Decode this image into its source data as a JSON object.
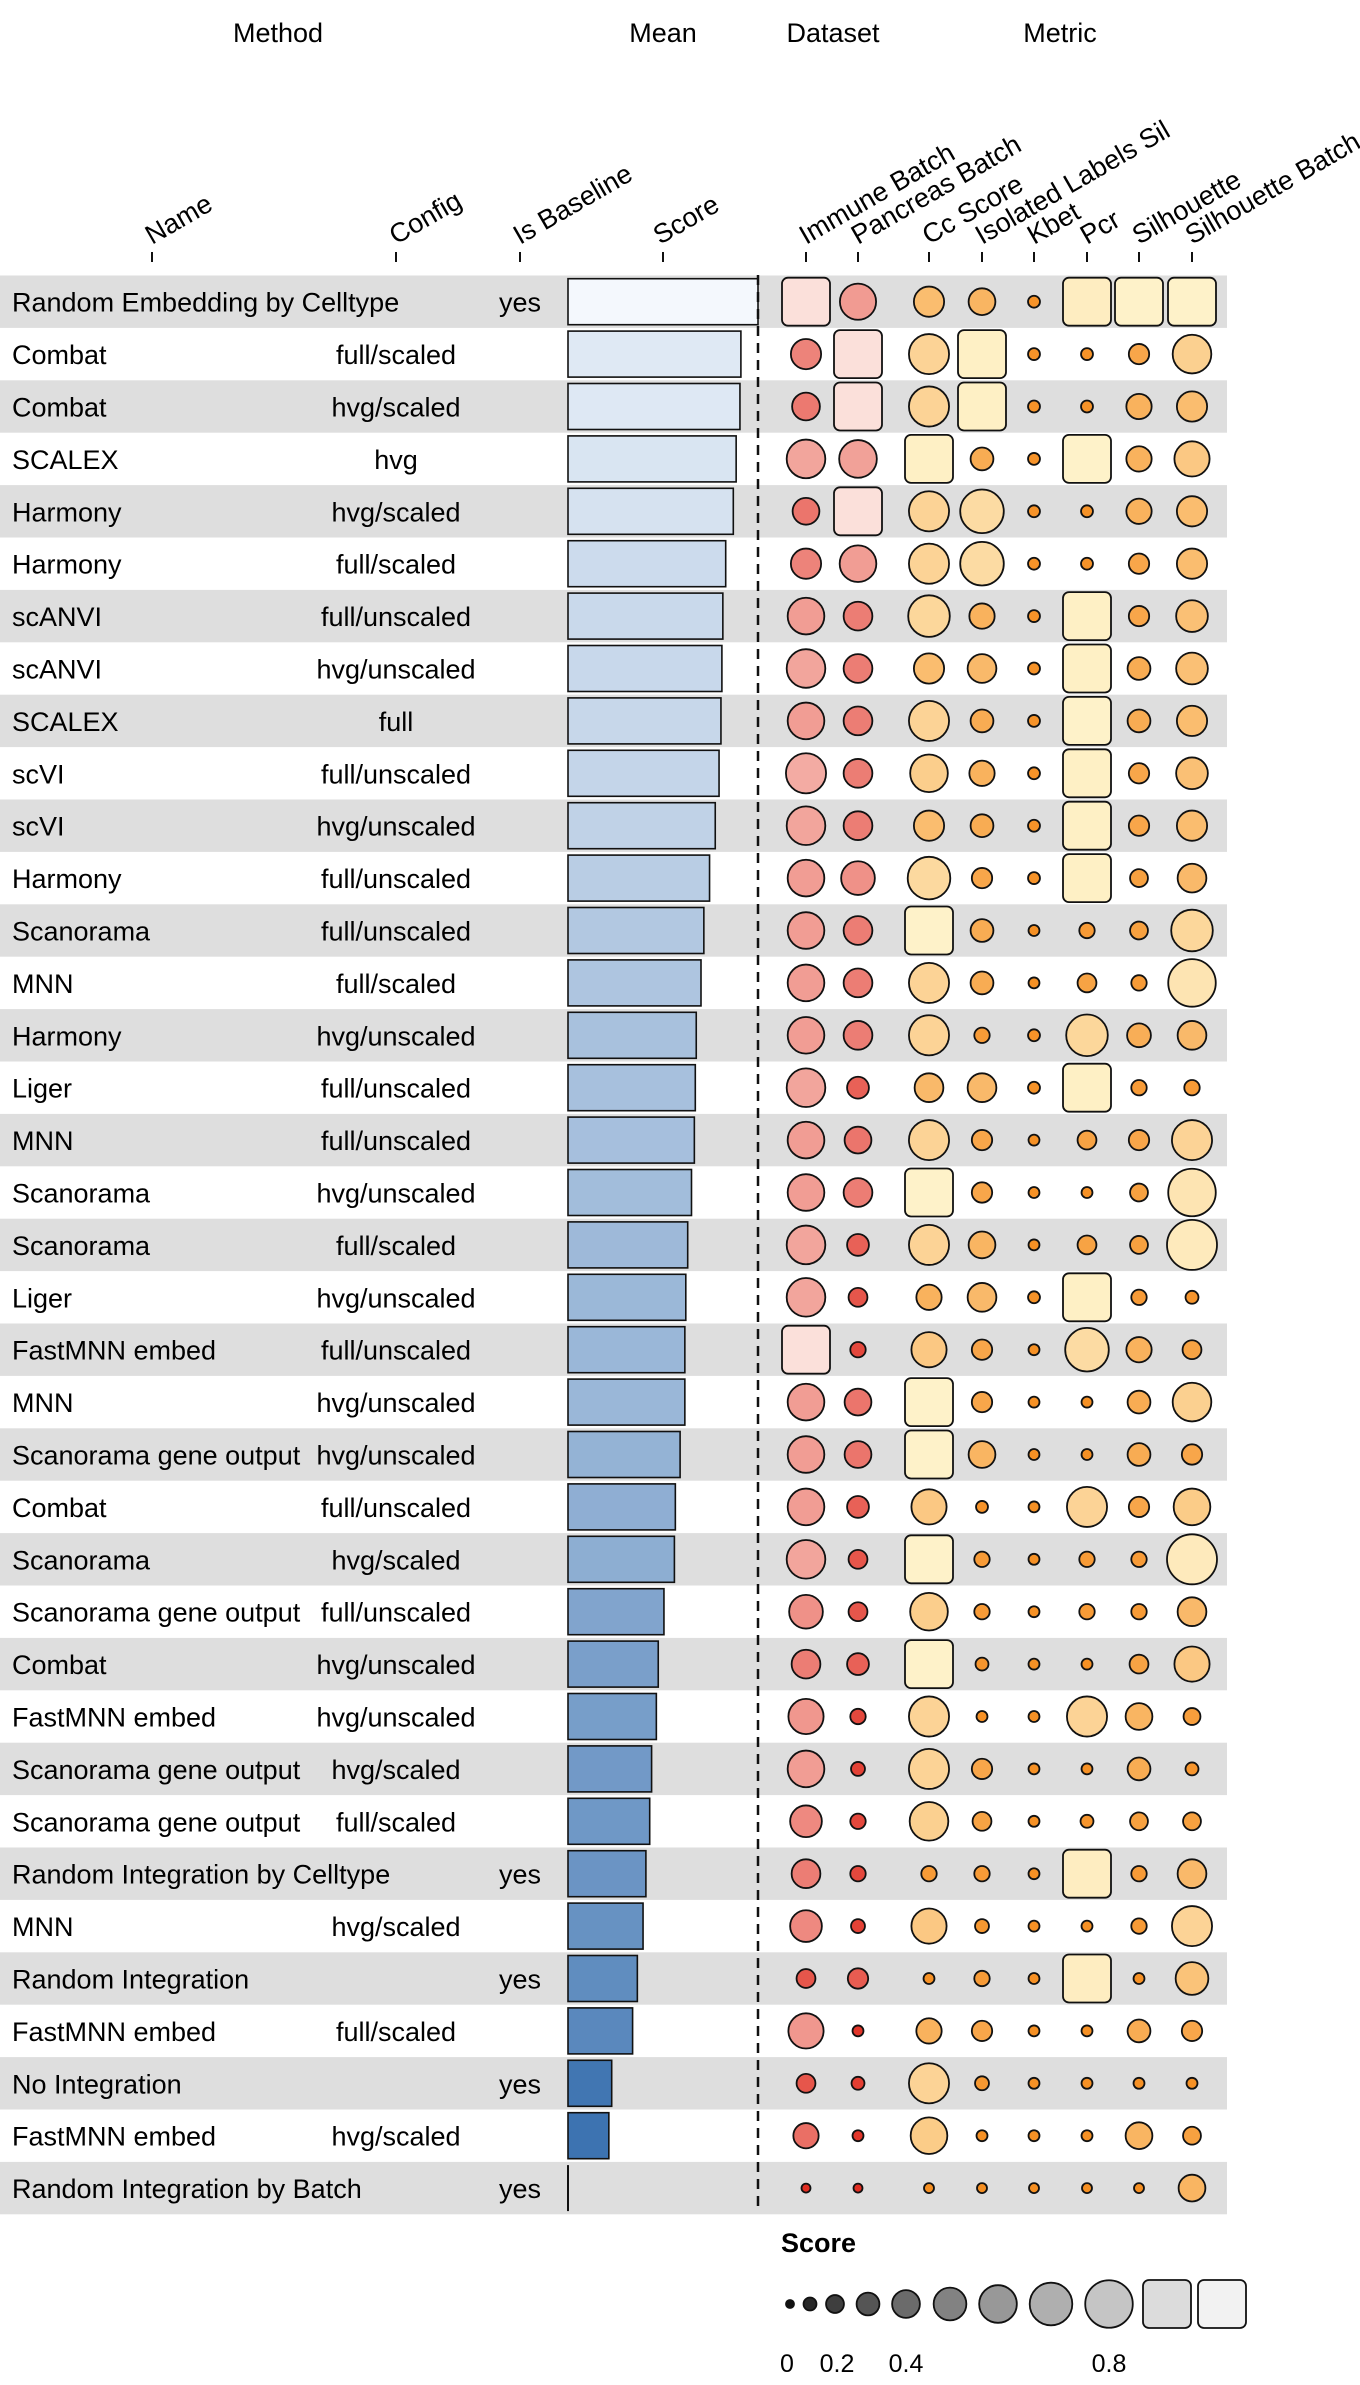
{
  "groups": {
    "method": "Method",
    "mean": "Mean",
    "dataset": "Dataset",
    "metric": "Metric"
  },
  "columns": {
    "name": "Name",
    "config": "Config",
    "baseline": "Is Baseline",
    "score": "Score"
  },
  "chart_data": {
    "type": "table",
    "metrics": [
      "Immune Batch",
      "Pancreas Batch",
      "Cc Score",
      "Isolated Labels Sil",
      "Kbet",
      "Pcr",
      "Silhouette",
      "Silhouette Batch"
    ],
    "metric_groups": [
      "Dataset",
      "Dataset",
      "Metric",
      "Metric",
      "Metric",
      "Metric",
      "Metric",
      "Metric"
    ],
    "rows": [
      {
        "name": "Random Embedding by Celltype",
        "config": "",
        "baseline": "yes",
        "score": 1.0,
        "values": [
          0.92,
          0.57,
          0.45,
          0.38,
          0.08,
          0.88,
          0.92,
          0.92
        ]
      },
      {
        "name": "Combat",
        "config": "full/scaled",
        "baseline": "",
        "score": 0.91,
        "values": [
          0.45,
          0.92,
          0.65,
          0.9,
          0.08,
          0.08,
          0.25,
          0.62
        ]
      },
      {
        "name": "Combat",
        "config": "hvg/scaled",
        "baseline": "",
        "score": 0.905,
        "values": [
          0.4,
          0.92,
          0.65,
          0.9,
          0.08,
          0.08,
          0.35,
          0.45
        ]
      },
      {
        "name": "SCALEX",
        "config": "hvg",
        "baseline": "",
        "score": 0.885,
        "values": [
          0.62,
          0.6,
          0.9,
          0.3,
          0.08,
          0.92,
          0.35,
          0.55
        ]
      },
      {
        "name": "Harmony",
        "config": "hvg/scaled",
        "baseline": "",
        "score": 0.87,
        "values": [
          0.38,
          0.92,
          0.65,
          0.72,
          0.08,
          0.08,
          0.35,
          0.45
        ]
      },
      {
        "name": "Harmony",
        "config": "full/scaled",
        "baseline": "",
        "score": 0.83,
        "values": [
          0.45,
          0.58,
          0.65,
          0.72,
          0.08,
          0.08,
          0.25,
          0.45
        ]
      },
      {
        "name": "scANVI",
        "config": "full/unscaled",
        "baseline": "",
        "score": 0.815,
        "values": [
          0.58,
          0.42,
          0.68,
          0.35,
          0.08,
          0.9,
          0.25,
          0.48
        ]
      },
      {
        "name": "scANVI",
        "config": "hvg/unscaled",
        "baseline": "",
        "score": 0.81,
        "values": [
          0.62,
          0.42,
          0.45,
          0.42,
          0.08,
          0.9,
          0.3,
          0.48
        ]
      },
      {
        "name": "SCALEX",
        "config": "full",
        "baseline": "",
        "score": 0.805,
        "values": [
          0.58,
          0.42,
          0.65,
          0.3,
          0.08,
          0.92,
          0.3,
          0.45
        ]
      },
      {
        "name": "scVI",
        "config": "full/unscaled",
        "baseline": "",
        "score": 0.795,
        "values": [
          0.65,
          0.42,
          0.6,
          0.35,
          0.08,
          0.9,
          0.25,
          0.48
        ]
      },
      {
        "name": "scVI",
        "config": "hvg/unscaled",
        "baseline": "",
        "score": 0.775,
        "values": [
          0.62,
          0.42,
          0.45,
          0.3,
          0.08,
          0.9,
          0.25,
          0.45
        ]
      },
      {
        "name": "Harmony",
        "config": "full/unscaled",
        "baseline": "",
        "score": 0.745,
        "values": [
          0.58,
          0.52,
          0.7,
          0.25,
          0.08,
          0.9,
          0.2,
          0.42
        ]
      },
      {
        "name": "Scanorama",
        "config": "full/unscaled",
        "baseline": "",
        "score": 0.715,
        "values": [
          0.58,
          0.42,
          0.92,
          0.3,
          0.06,
          0.15,
          0.2,
          0.68
        ]
      },
      {
        "name": "MNN",
        "config": "full/scaled",
        "baseline": "",
        "score": 0.7,
        "values": [
          0.58,
          0.42,
          0.65,
          0.3,
          0.06,
          0.22,
          0.15,
          0.8
        ]
      },
      {
        "name": "Harmony",
        "config": "hvg/unscaled",
        "baseline": "",
        "score": 0.675,
        "values": [
          0.58,
          0.42,
          0.65,
          0.15,
          0.08,
          0.68,
          0.32,
          0.42
        ]
      },
      {
        "name": "Liger",
        "config": "full/unscaled",
        "baseline": "",
        "score": 0.67,
        "values": [
          0.62,
          0.28,
          0.42,
          0.42,
          0.08,
          0.9,
          0.15,
          0.15
        ]
      },
      {
        "name": "MNN",
        "config": "full/unscaled",
        "baseline": "",
        "score": 0.665,
        "values": [
          0.58,
          0.38,
          0.65,
          0.25,
          0.06,
          0.22,
          0.25,
          0.65
        ]
      },
      {
        "name": "Scanorama",
        "config": "hvg/unscaled",
        "baseline": "",
        "score": 0.65,
        "values": [
          0.58,
          0.42,
          0.92,
          0.25,
          0.06,
          0.06,
          0.2,
          0.8
        ]
      },
      {
        "name": "Scanorama",
        "config": "full/scaled",
        "baseline": "",
        "score": 0.63,
        "values": [
          0.62,
          0.28,
          0.65,
          0.38,
          0.06,
          0.22,
          0.2,
          0.85
        ]
      },
      {
        "name": "Liger",
        "config": "hvg/unscaled",
        "baseline": "",
        "score": 0.62,
        "values": [
          0.62,
          0.22,
          0.35,
          0.42,
          0.08,
          0.9,
          0.15,
          0.1
        ]
      },
      {
        "name": "FastMNN embed",
        "config": "full/unscaled",
        "baseline": "",
        "score": 0.615,
        "values": [
          0.92,
          0.15,
          0.55,
          0.25,
          0.06,
          0.72,
          0.35,
          0.22
        ]
      },
      {
        "name": "MNN",
        "config": "hvg/unscaled",
        "baseline": "",
        "score": 0.615,
        "values": [
          0.58,
          0.38,
          0.92,
          0.25,
          0.06,
          0.06,
          0.3,
          0.62
        ]
      },
      {
        "name": "Scanorama gene output",
        "config": "hvg/unscaled",
        "baseline": "",
        "score": 0.59,
        "values": [
          0.58,
          0.38,
          0.92,
          0.38,
          0.06,
          0.06,
          0.3,
          0.25
        ]
      },
      {
        "name": "Combat",
        "config": "full/unscaled",
        "baseline": "",
        "score": 0.565,
        "values": [
          0.58,
          0.28,
          0.55,
          0.08,
          0.06,
          0.65,
          0.25,
          0.58
        ]
      },
      {
        "name": "Scanorama",
        "config": "hvg/scaled",
        "baseline": "",
        "score": 0.56,
        "values": [
          0.62,
          0.22,
          0.92,
          0.15,
          0.06,
          0.15,
          0.15,
          0.85
        ]
      },
      {
        "name": "Scanorama gene output",
        "config": "full/unscaled",
        "baseline": "",
        "score": 0.505,
        "values": [
          0.52,
          0.22,
          0.6,
          0.15,
          0.06,
          0.15,
          0.15,
          0.42
        ]
      },
      {
        "name": "Combat",
        "config": "hvg/unscaled",
        "baseline": "",
        "score": 0.475,
        "values": [
          0.42,
          0.28,
          0.92,
          0.1,
          0.06,
          0.06,
          0.22,
          0.55
        ]
      },
      {
        "name": "FastMNN embed",
        "config": "hvg/unscaled",
        "baseline": "",
        "score": 0.465,
        "values": [
          0.55,
          0.15,
          0.65,
          0.06,
          0.06,
          0.65,
          0.38,
          0.18
        ]
      },
      {
        "name": "Scanorama gene output",
        "config": "hvg/scaled",
        "baseline": "",
        "score": 0.44,
        "values": [
          0.58,
          0.12,
          0.65,
          0.25,
          0.06,
          0.06,
          0.3,
          0.1
        ]
      },
      {
        "name": "Scanorama gene output",
        "config": "full/scaled",
        "baseline": "",
        "score": 0.43,
        "values": [
          0.48,
          0.15,
          0.62,
          0.22,
          0.06,
          0.1,
          0.2,
          0.2
        ]
      },
      {
        "name": "Random Integration by Celltype",
        "config": "",
        "baseline": "yes",
        "score": 0.41,
        "values": [
          0.42,
          0.15,
          0.15,
          0.15,
          0.06,
          0.88,
          0.15,
          0.42
        ]
      },
      {
        "name": "MNN",
        "config": "hvg/scaled",
        "baseline": "",
        "score": 0.395,
        "values": [
          0.48,
          0.12,
          0.55,
          0.12,
          0.06,
          0.06,
          0.15,
          0.65
        ]
      },
      {
        "name": "Random Integration",
        "config": "",
        "baseline": "yes",
        "score": 0.365,
        "values": [
          0.22,
          0.25,
          0.06,
          0.15,
          0.06,
          0.88,
          0.06,
          0.5
        ]
      },
      {
        "name": "FastMNN embed",
        "config": "full/scaled",
        "baseline": "",
        "score": 0.34,
        "values": [
          0.55,
          0.06,
          0.35,
          0.25,
          0.06,
          0.06,
          0.3,
          0.25
        ]
      },
      {
        "name": "No Integration",
        "config": "",
        "baseline": "yes",
        "score": 0.23,
        "values": [
          0.22,
          0.1,
          0.65,
          0.12,
          0.06,
          0.06,
          0.06,
          0.06
        ]
      },
      {
        "name": "FastMNN embed",
        "config": "hvg/scaled",
        "baseline": "",
        "score": 0.215,
        "values": [
          0.35,
          0.06,
          0.58,
          0.06,
          0.06,
          0.06,
          0.38,
          0.2
        ]
      },
      {
        "name": "Random Integration by Batch",
        "config": "",
        "baseline": "yes",
        "score": 0.0,
        "values": [
          0.02,
          0.02,
          0.04,
          0.04,
          0.04,
          0.04,
          0.04,
          0.38
        ]
      }
    ],
    "legend": {
      "title": "Score",
      "tick_labels": [
        "0",
        "0.2",
        "0.4",
        "0.8"
      ],
      "tick_values": [
        0,
        0.2,
        0.4,
        0.8
      ],
      "steps": [
        0,
        0.1,
        0.2,
        0.3,
        0.4,
        0.5,
        0.6,
        0.7,
        0.8,
        0.9,
        1.0
      ]
    },
    "colors": {
      "row_stripe": "#dedede",
      "score_light": "#f4f8fd",
      "score_dark": "#0b4f9c",
      "dataset_light": "#fdf0ea",
      "dataset_dark": "#e02a1e",
      "metric_light": "#fffbd8",
      "metric_dark": "#f58a1a",
      "legend_light": "#f2f2f2",
      "legend_dark": "#111111"
    }
  }
}
